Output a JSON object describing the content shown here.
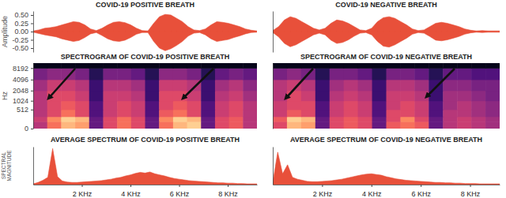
{
  "chart_data": [
    {
      "type": "area",
      "title": "COVID-19 POSITIVE BREATH",
      "ylabel": "Amplitude",
      "color": "#e8503a",
      "ylim": [
        -0.62,
        0.62
      ],
      "yticks": [
        {
          "value": 0.5,
          "label": "0.50"
        },
        {
          "value": 0.25,
          "label": "0.25"
        },
        {
          "value": 0,
          "label": "0.00"
        },
        {
          "value": -0.25,
          "label": "-0.25"
        },
        {
          "value": -0.5,
          "label": "-0.50"
        }
      ],
      "tick_labels": "y",
      "values": [
        0.02,
        0.05,
        0.1,
        0.12,
        0.15,
        0.2,
        0.25,
        0.3,
        0.28,
        0.2,
        0.08,
        0.03,
        0.1,
        0.2,
        0.28,
        0.3,
        0.27,
        0.2,
        0.1,
        0.03,
        0.02,
        0.25,
        0.45,
        0.52,
        0.5,
        0.4,
        0.3,
        0.15,
        0.05,
        0.03,
        0.08,
        0.2,
        0.3,
        0.28,
        0.25,
        0.2,
        0.15,
        0.08,
        0.04,
        0.02
      ],
      "lower": [
        -0.02,
        -0.06,
        -0.1,
        -0.13,
        -0.16,
        -0.22,
        -0.26,
        -0.3,
        -0.27,
        -0.18,
        -0.07,
        -0.03,
        -0.12,
        -0.22,
        -0.28,
        -0.3,
        -0.26,
        -0.18,
        -0.08,
        -0.03,
        -0.03,
        -0.3,
        -0.5,
        -0.58,
        -0.52,
        -0.42,
        -0.3,
        -0.14,
        -0.05,
        -0.03,
        -0.1,
        -0.22,
        -0.3,
        -0.27,
        -0.24,
        -0.18,
        -0.13,
        -0.07,
        -0.03,
        -0.02
      ]
    },
    {
      "type": "area",
      "title": "COVID-19 NEGATIVE BREATH",
      "color": "#e8503a",
      "ylim": [
        -0.62,
        0.62
      ],
      "tick_labels": false,
      "values": [
        0.03,
        0.15,
        0.35,
        0.45,
        0.4,
        0.3,
        0.2,
        0.1,
        0.05,
        0.1,
        0.25,
        0.35,
        0.32,
        0.25,
        0.15,
        0.05,
        0.03,
        0.1,
        0.3,
        0.42,
        0.45,
        0.4,
        0.3,
        0.2,
        0.08,
        0.03,
        0.05,
        0.15,
        0.25,
        0.28,
        0.25,
        0.2,
        0.15,
        0.08,
        0.04,
        0.02,
        0.03,
        0.02,
        0.02,
        0.02
      ],
      "lower": [
        -0.03,
        -0.16,
        -0.36,
        -0.46,
        -0.4,
        -0.3,
        -0.2,
        -0.1,
        -0.05,
        -0.1,
        -0.26,
        -0.36,
        -0.33,
        -0.25,
        -0.14,
        -0.05,
        -0.03,
        -0.1,
        -0.3,
        -0.44,
        -0.47,
        -0.4,
        -0.3,
        -0.2,
        -0.08,
        -0.03,
        -0.05,
        -0.15,
        -0.26,
        -0.28,
        -0.25,
        -0.2,
        -0.15,
        -0.08,
        -0.04,
        -0.02,
        -0.03,
        -0.02,
        -0.02,
        -0.02
      ]
    },
    {
      "type": "heatmap",
      "title": "SPECTROGRAM OF COVID-19 POSITIVE BREATH",
      "ylabel": "Hz",
      "log": "y",
      "ylim": [
        0,
        11025
      ],
      "yticks": [
        0,
        512,
        1024,
        2048,
        4096,
        8192
      ],
      "tick_labels": "y",
      "freq_bins": [
        0,
        128,
        256,
        512,
        1024,
        2048,
        4096,
        8192,
        11025
      ],
      "cells": [
        [
          0.5,
          0.7,
          0.85,
          0.8,
          0.3,
          0.6,
          0.7,
          0.6,
          0.3,
          0.7,
          0.85,
          0.9,
          0.3,
          0.6,
          0.65,
          0.5
        ],
        [
          0.55,
          0.75,
          0.9,
          0.85,
          0.3,
          0.6,
          0.7,
          0.6,
          0.3,
          0.75,
          0.9,
          0.85,
          0.3,
          0.6,
          0.65,
          0.5
        ],
        [
          0.5,
          0.6,
          0.7,
          0.6,
          0.25,
          0.55,
          0.6,
          0.55,
          0.25,
          0.65,
          0.7,
          0.6,
          0.25,
          0.55,
          0.6,
          0.5
        ],
        [
          0.5,
          0.6,
          0.65,
          0.6,
          0.25,
          0.55,
          0.6,
          0.55,
          0.25,
          0.6,
          0.65,
          0.6,
          0.25,
          0.55,
          0.6,
          0.5
        ],
        [
          0.5,
          0.6,
          0.6,
          0.55,
          0.2,
          0.55,
          0.55,
          0.5,
          0.2,
          0.6,
          0.6,
          0.55,
          0.2,
          0.5,
          0.55,
          0.45
        ],
        [
          0.45,
          0.55,
          0.55,
          0.5,
          0.2,
          0.5,
          0.5,
          0.45,
          0.2,
          0.55,
          0.55,
          0.5,
          0.2,
          0.45,
          0.5,
          0.4
        ],
        [
          0.35,
          0.4,
          0.4,
          0.35,
          0.15,
          0.35,
          0.35,
          0.3,
          0.15,
          0.4,
          0.4,
          0.35,
          0.15,
          0.3,
          0.35,
          0.3
        ],
        [
          0.05,
          0.05,
          0.05,
          0.05,
          0.05,
          0.05,
          0.05,
          0.05,
          0.05,
          0.05,
          0.05,
          0.05,
          0.05,
          0.05,
          0.05,
          0.05
        ]
      ]
    },
    {
      "type": "heatmap",
      "title": "SPECTROGRAM OF COVID-19 NEGATIVE BREATH",
      "log": "y",
      "ylim": [
        0,
        11025
      ],
      "tick_labels": false,
      "freq_bins": [
        0,
        128,
        256,
        512,
        1024,
        2048,
        4096,
        8192,
        11025
      ],
      "cells": [
        [
          0.6,
          0.85,
          0.8,
          0.3,
          0.6,
          0.65,
          0.6,
          0.3,
          0.65,
          0.7,
          0.65,
          0.3,
          0.5,
          0.55,
          0.5,
          0.45
        ],
        [
          0.65,
          0.9,
          0.85,
          0.3,
          0.6,
          0.65,
          0.6,
          0.3,
          0.6,
          0.75,
          0.6,
          0.3,
          0.5,
          0.55,
          0.5,
          0.45
        ],
        [
          0.55,
          0.65,
          0.6,
          0.25,
          0.55,
          0.6,
          0.55,
          0.25,
          0.6,
          0.6,
          0.55,
          0.25,
          0.5,
          0.5,
          0.45,
          0.4
        ],
        [
          0.55,
          0.6,
          0.6,
          0.25,
          0.55,
          0.6,
          0.55,
          0.25,
          0.55,
          0.6,
          0.55,
          0.25,
          0.45,
          0.5,
          0.45,
          0.4
        ],
        [
          0.5,
          0.6,
          0.55,
          0.2,
          0.5,
          0.55,
          0.5,
          0.2,
          0.55,
          0.55,
          0.5,
          0.2,
          0.45,
          0.45,
          0.4,
          0.35
        ],
        [
          0.5,
          0.55,
          0.5,
          0.2,
          0.45,
          0.5,
          0.45,
          0.2,
          0.5,
          0.5,
          0.45,
          0.2,
          0.4,
          0.4,
          0.35,
          0.35
        ],
        [
          0.35,
          0.4,
          0.35,
          0.15,
          0.35,
          0.35,
          0.3,
          0.15,
          0.35,
          0.35,
          0.3,
          0.15,
          0.3,
          0.3,
          0.25,
          0.25
        ],
        [
          0.05,
          0.05,
          0.05,
          0.05,
          0.05,
          0.05,
          0.05,
          0.05,
          0.05,
          0.05,
          0.05,
          0.05,
          0.05,
          0.05,
          0.05,
          0.05
        ]
      ]
    },
    {
      "type": "area",
      "title": "AVERAGE SPECTRUM OF COVID-19 POSITIVE BREATH",
      "ylabel": "SPECTRAL MAGNITUDE",
      "color": "#e8503a",
      "xlim": [
        0,
        9.2
      ],
      "ylim": [
        0,
        1.05
      ],
      "tick_labels": "x",
      "xticks": [
        {
          "value": 2,
          "label": "2 KHz"
        },
        {
          "value": 4,
          "label": "4 KHz"
        },
        {
          "value": 6,
          "label": "6 KHz"
        },
        {
          "value": 8,
          "label": "8 KHz"
        }
      ],
      "x": [
        0,
        0.2,
        0.4,
        0.6,
        0.8,
        1,
        1.2,
        1.4,
        1.6,
        1.8,
        2,
        2.2,
        2.4,
        2.6,
        2.8,
        3,
        3.2,
        3.4,
        3.6,
        3.8,
        4,
        4.2,
        4.4,
        4.6,
        4.8,
        5,
        5.2,
        5.4,
        5.6,
        5.8,
        6,
        6.2,
        6.4,
        6.6,
        6.8,
        7,
        7.2,
        7.4,
        7.6,
        7.8,
        8,
        8.2,
        8.4,
        8.6,
        8.8,
        9,
        9.2
      ],
      "values": [
        0.02,
        0.06,
        0.12,
        0.2,
        1.0,
        0.22,
        0.1,
        0.07,
        0.06,
        0.06,
        0.07,
        0.08,
        0.09,
        0.1,
        0.11,
        0.13,
        0.15,
        0.18,
        0.2,
        0.24,
        0.27,
        0.31,
        0.34,
        0.32,
        0.35,
        0.3,
        0.27,
        0.24,
        0.2,
        0.17,
        0.15,
        0.13,
        0.11,
        0.1,
        0.09,
        0.08,
        0.07,
        0.06,
        0.05,
        0.05,
        0.04,
        0.04,
        0.03,
        0.03,
        0.02,
        0.02,
        0.02
      ]
    },
    {
      "type": "area",
      "title": "AVERAGE SPECTRUM OF COVID-19 NEGATIVE BREATH",
      "color": "#e8503a",
      "xlim": [
        0,
        9.2
      ],
      "ylim": [
        0,
        1.05
      ],
      "tick_labels": "x",
      "xticks": [
        {
          "value": 2,
          "label": "2 KHz"
        },
        {
          "value": 4,
          "label": "4 KHz"
        },
        {
          "value": 6,
          "label": "6 KHz"
        },
        {
          "value": 8,
          "label": "8 KHz"
        }
      ],
      "x": [
        0,
        0.2,
        0.4,
        0.6,
        0.8,
        1,
        1.2,
        1.4,
        1.6,
        1.8,
        2,
        2.2,
        2.4,
        2.6,
        2.8,
        3,
        3.2,
        3.4,
        3.6,
        3.8,
        4,
        4.2,
        4.4,
        4.6,
        4.8,
        5,
        5.2,
        5.4,
        5.6,
        5.8,
        6,
        6.2,
        6.4,
        6.6,
        6.8,
        7,
        7.2,
        7.4,
        7.6,
        7.8,
        8,
        8.2,
        8.4,
        8.6,
        8.8,
        9,
        9.2
      ],
      "values": [
        0.05,
        0.9,
        0.3,
        0.55,
        0.2,
        0.15,
        0.12,
        0.09,
        0.08,
        0.08,
        0.09,
        0.1,
        0.11,
        0.13,
        0.15,
        0.18,
        0.21,
        0.24,
        0.27,
        0.29,
        0.3,
        0.28,
        0.26,
        0.22,
        0.19,
        0.16,
        0.14,
        0.12,
        0.11,
        0.1,
        0.09,
        0.08,
        0.07,
        0.06,
        0.06,
        0.05,
        0.05,
        0.04,
        0.04,
        0.03,
        0.03,
        0.03,
        0.02,
        0.02,
        0.02,
        0.02,
        0.02
      ]
    }
  ]
}
